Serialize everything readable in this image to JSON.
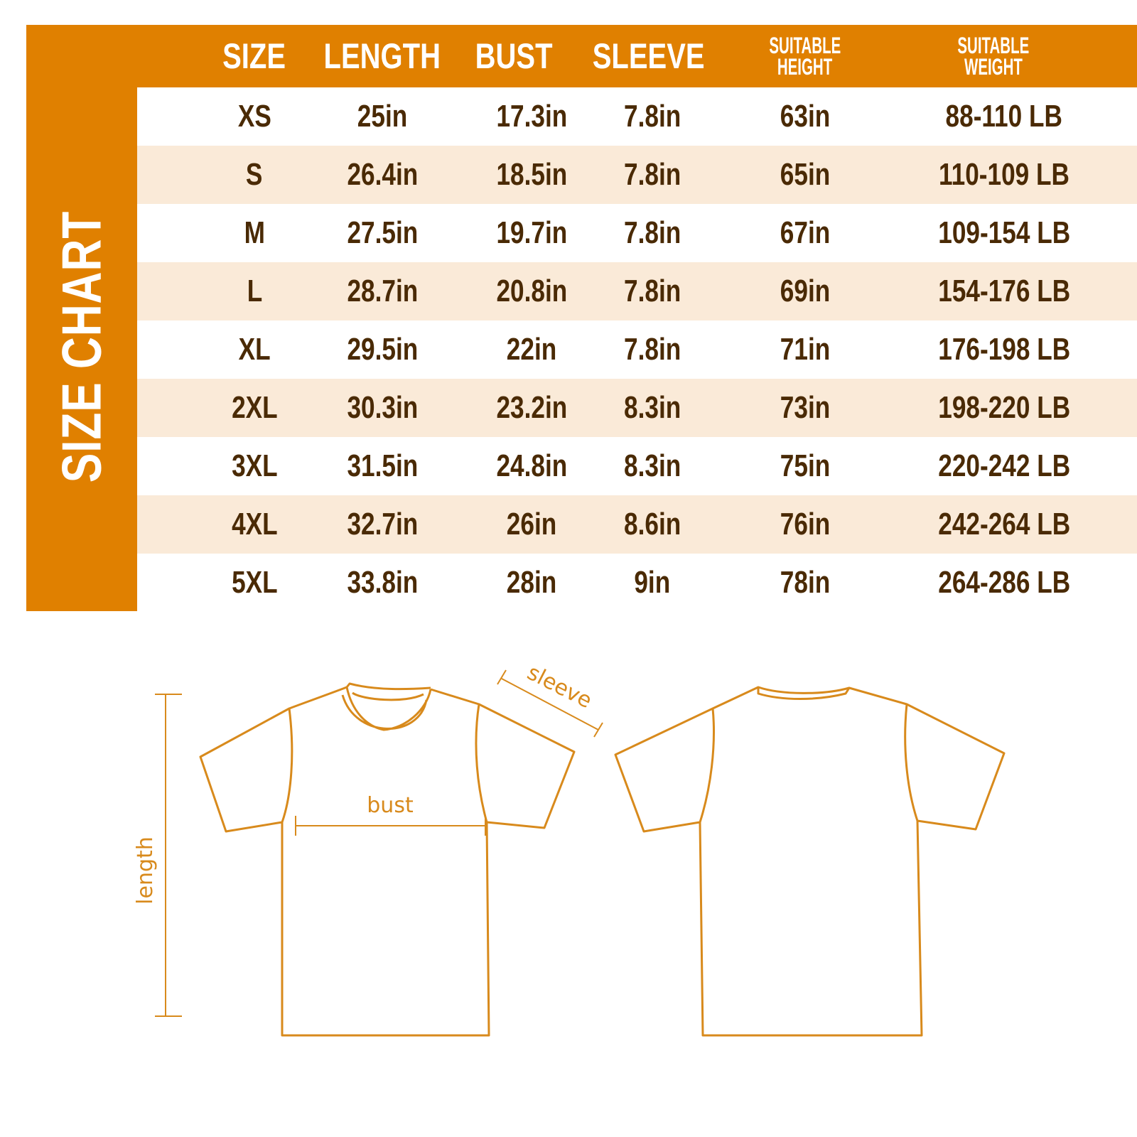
{
  "title": "SIZE CHART",
  "columns": [
    "SIZE",
    "LENGTH",
    "BUST",
    "SLEEVE",
    [
      "SUITABLE",
      "HEIGHT"
    ],
    [
      "SUITABLE",
      "WEIGHT"
    ]
  ],
  "rows": [
    [
      "XS",
      "25in",
      "17.3in",
      "7.8in",
      "63in",
      "88-110 LB"
    ],
    [
      "S",
      "26.4in",
      "18.5in",
      "7.8in",
      "65in",
      "110-109 LB"
    ],
    [
      "M",
      "27.5in",
      "19.7in",
      "7.8in",
      "67in",
      "109-154 LB"
    ],
    [
      "L",
      "28.7in",
      "20.8in",
      "7.8in",
      "69in",
      "154-176 LB"
    ],
    [
      "XL",
      "29.5in",
      "22in",
      "7.8in",
      "71in",
      "176-198 LB"
    ],
    [
      "2XL",
      "30.3in",
      "23.2in",
      "8.3in",
      "73in",
      "198-220 LB"
    ],
    [
      "3XL",
      "31.5in",
      "24.8in",
      "8.3in",
      "75in",
      "220-242 LB"
    ],
    [
      "4XL",
      "32.7in",
      "26in",
      "8.6in",
      "76in",
      "242-264 LB"
    ],
    [
      "5XL",
      "33.8in",
      "28in",
      "9in",
      "78in",
      "264-286 LB"
    ]
  ],
  "diagram": {
    "length": "length",
    "bust": "bust",
    "sleeve": "sleeve"
  },
  "colors": {
    "accent": "#E08000",
    "row_alt": "#FAEAD8",
    "text": "#4A2A05",
    "outline": "#D88A1C"
  }
}
